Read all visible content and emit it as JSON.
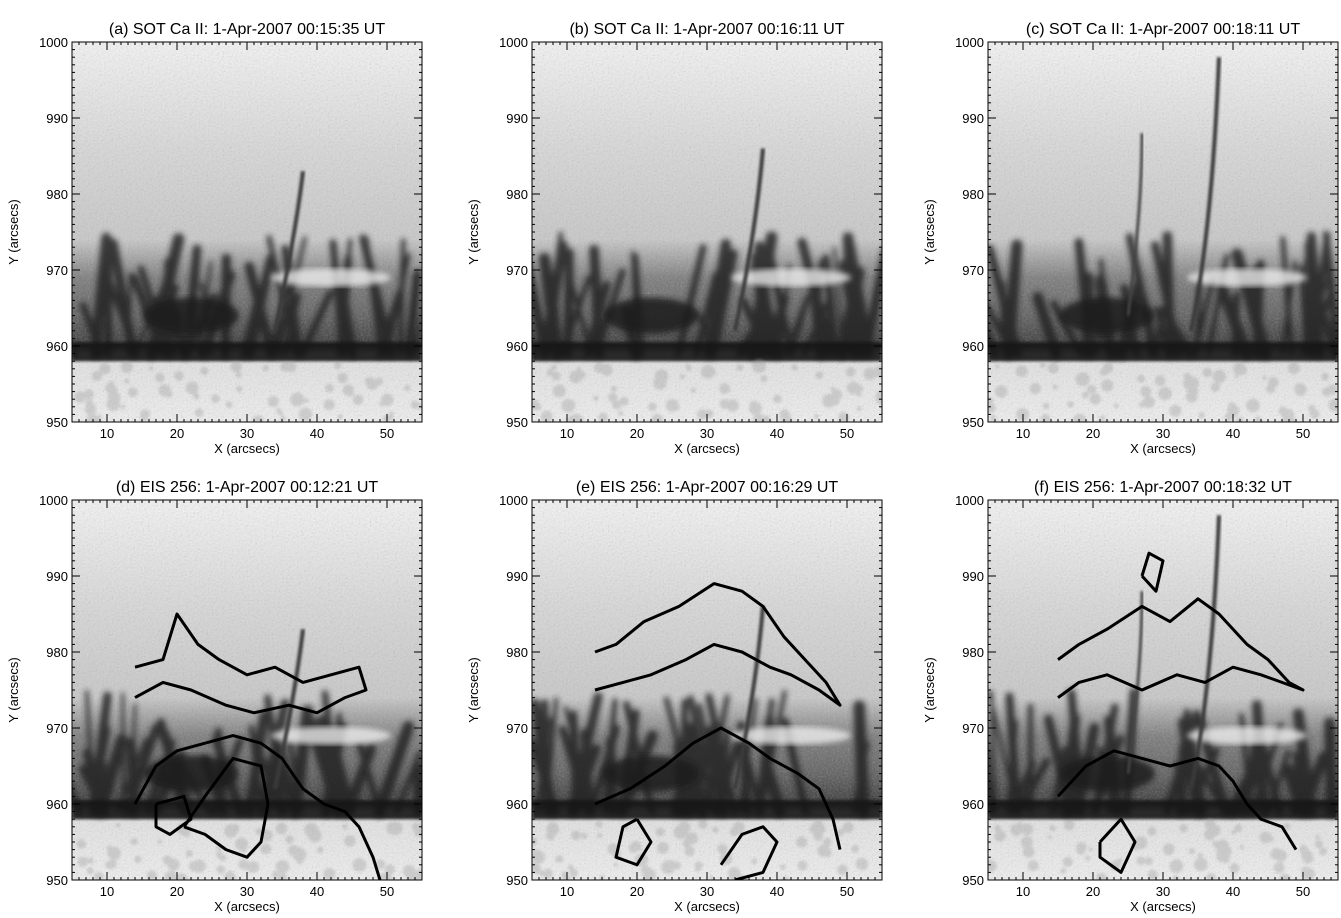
{
  "figure": {
    "panels": [
      {
        "id": "a",
        "title": "(a) SOT Ca II:  1-Apr-2007 00:15:35 UT",
        "instrument": "SOT Ca II",
        "time": "00:15:35",
        "contours": false
      },
      {
        "id": "b",
        "title": "(b) SOT Ca II:  1-Apr-2007 00:16:11 UT",
        "instrument": "SOT Ca II",
        "time": "00:16:11",
        "contours": false
      },
      {
        "id": "c",
        "title": "(c) SOT Ca II:  1-Apr-2007 00:18:11 UT",
        "instrument": "SOT Ca II",
        "time": "00:18:11",
        "contours": false
      },
      {
        "id": "d",
        "title": "(d) EIS 256:  1-Apr-2007 00:12:21 UT",
        "instrument": "EIS 256",
        "time": "00:12:21",
        "contours": true
      },
      {
        "id": "e",
        "title": "(e) EIS 256:  1-Apr-2007 00:16:29 UT",
        "instrument": "EIS 256",
        "time": "00:16:29",
        "contours": true
      },
      {
        "id": "f",
        "title": "(f) EIS 256:  1-Apr-2007 00:18:32 UT",
        "instrument": "EIS 256",
        "time": "00:18:32",
        "contours": true
      }
    ],
    "xlabel": "X (arcsecs)",
    "ylabel": "Y (arcsecs)",
    "xlim": [
      5,
      55
    ],
    "ylim": [
      950,
      1000
    ],
    "xticks": [
      "10",
      "20",
      "30",
      "40",
      "50"
    ],
    "yticks": [
      "950",
      "960",
      "970",
      "980",
      "990",
      "1000"
    ],
    "colormap": "inverted grayscale",
    "contour_color": "#000000"
  }
}
